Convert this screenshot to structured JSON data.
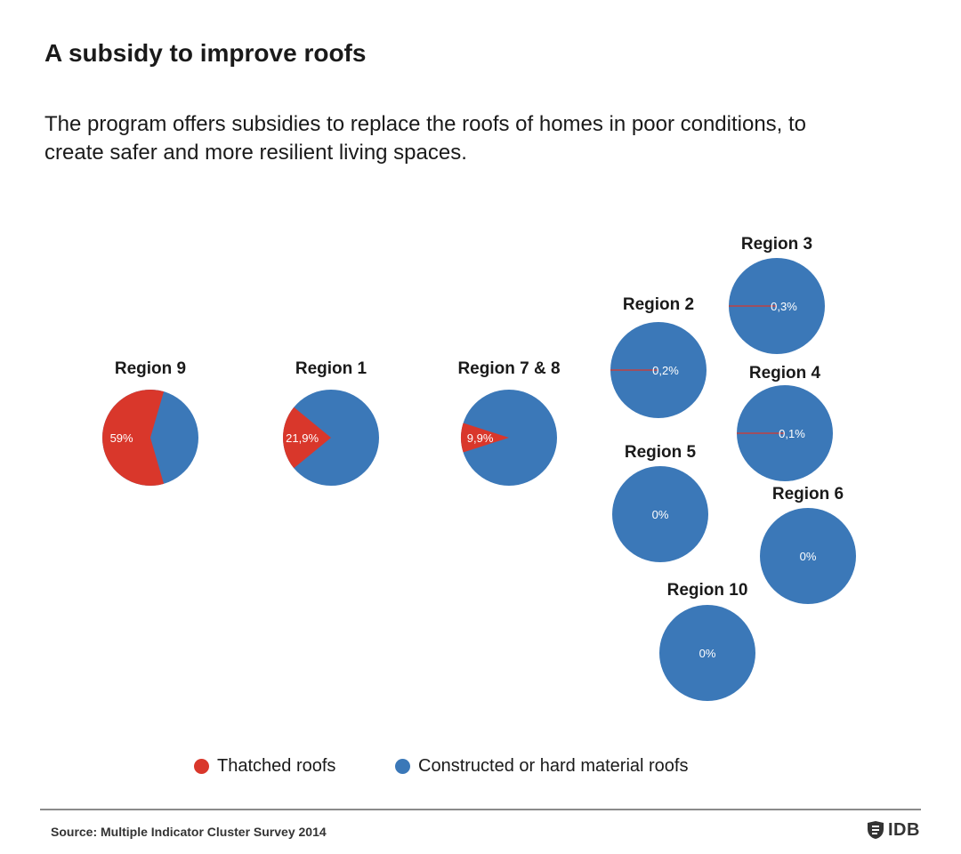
{
  "title": "A subsidy to improve roofs",
  "subtitle": "The program offers subsidies to replace the roofs of homes in poor conditions, to create safer and more resilient living spaces.",
  "colors": {
    "thatched": "#d9372b",
    "hard": "#3b78b8",
    "text": "#1a1a1a",
    "label_on_pie": "#ffffff"
  },
  "legend": {
    "thatched": "Thatched roofs",
    "hard": "Constructed or hard material roofs"
  },
  "source": "Source:  Multiple Indicator Cluster Survey 2014",
  "logo": {
    "text": "IDB",
    "icon": "idb-logo-icon"
  },
  "chart_data": {
    "type": "pie",
    "title": "A subsidy to improve roofs",
    "series": [
      "Thatched roofs",
      "Constructed or hard material roofs"
    ],
    "pies": [
      {
        "region": "Region 9",
        "thatched_pct": 59,
        "hard_pct": 41,
        "label": "59%"
      },
      {
        "region": "Region 1",
        "thatched_pct": 21.9,
        "hard_pct": 78.1,
        "label": "21,9%"
      },
      {
        "region": "Region 7 & 8",
        "thatched_pct": 9.9,
        "hard_pct": 90.1,
        "label": "9,9%"
      },
      {
        "region": "Region 2",
        "thatched_pct": 0.2,
        "hard_pct": 99.8,
        "label": "0,2%"
      },
      {
        "region": "Region 3",
        "thatched_pct": 0.3,
        "hard_pct": 99.7,
        "label": "0,3%"
      },
      {
        "region": "Region 4",
        "thatched_pct": 0.1,
        "hard_pct": 99.9,
        "label": "0,1%"
      },
      {
        "region": "Region 5",
        "thatched_pct": 0,
        "hard_pct": 100,
        "label": "0%"
      },
      {
        "region": "Region 6",
        "thatched_pct": 0,
        "hard_pct": 100,
        "label": "0%"
      },
      {
        "region": "Region 10",
        "thatched_pct": 0,
        "hard_pct": 100,
        "label": "0%"
      }
    ]
  }
}
